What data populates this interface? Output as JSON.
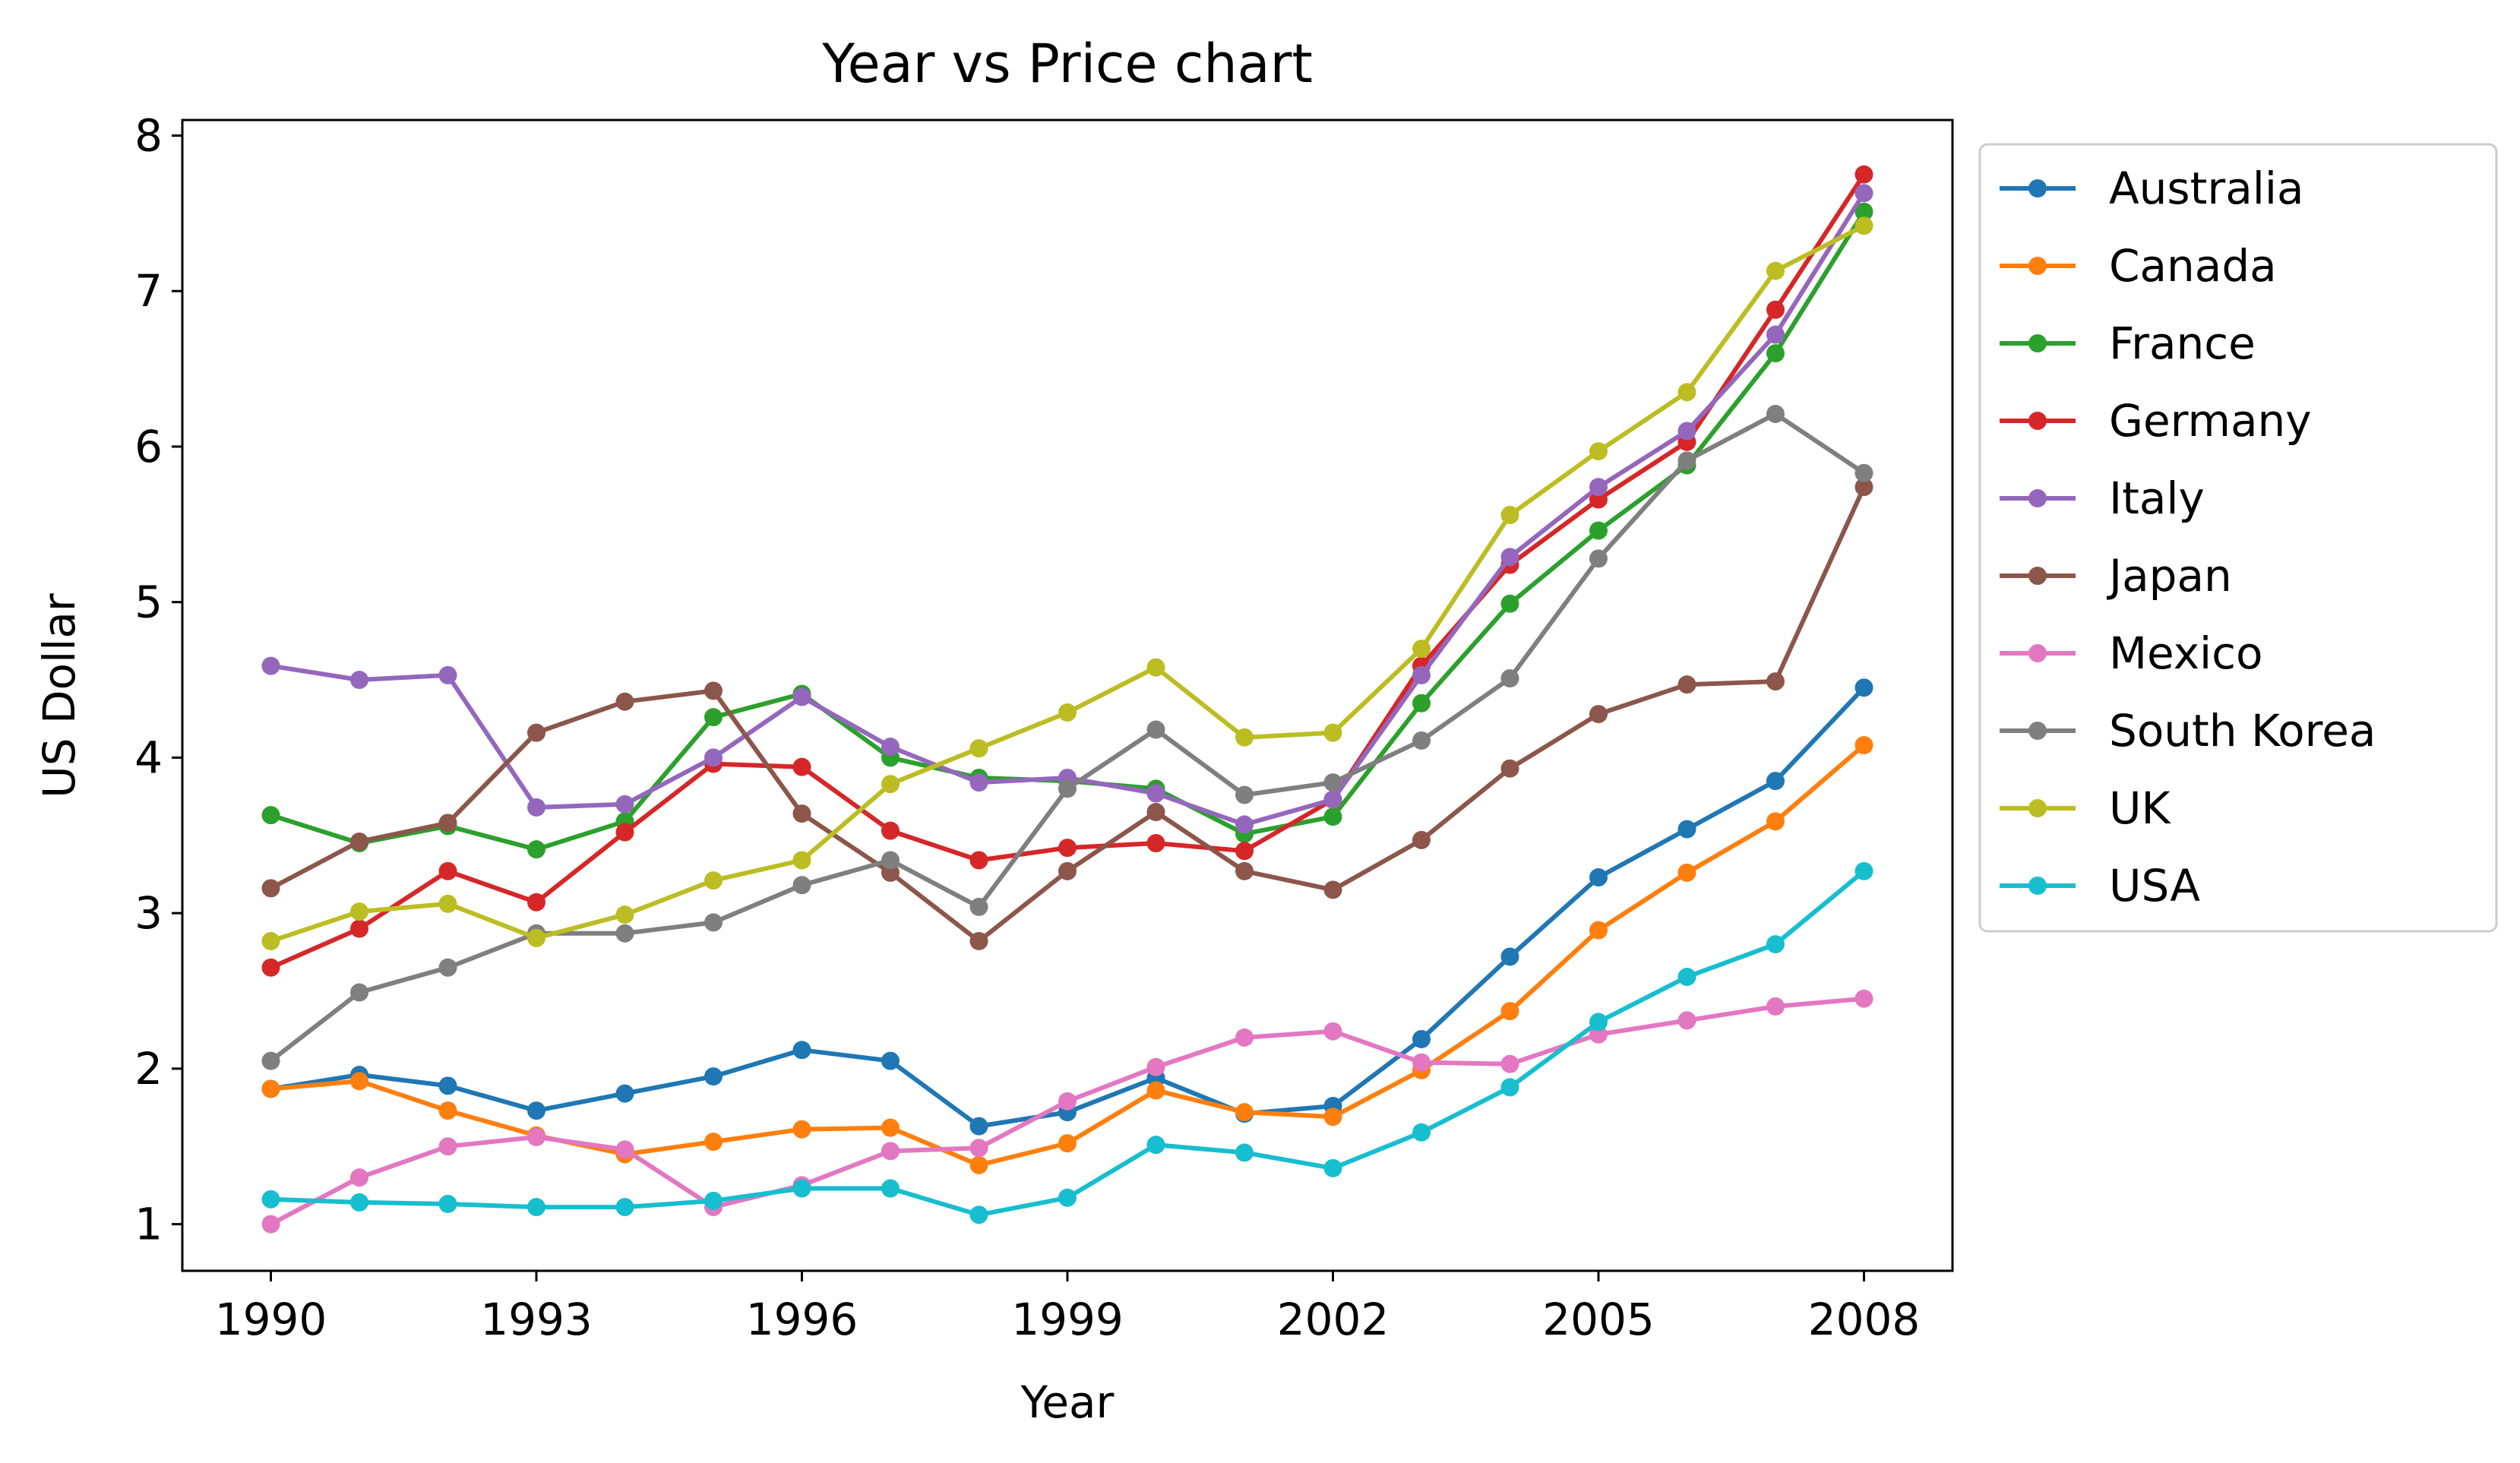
{
  "chart_data": {
    "type": "line",
    "title": "Year vs Price chart",
    "xlabel": "Year",
    "ylabel": "US Dollar",
    "xlim": [
      1989.0,
      2009.0
    ],
    "ylim": [
      0.7,
      8.1
    ],
    "x_ticks": [
      1990,
      1993,
      1996,
      1999,
      2002,
      2005,
      2008
    ],
    "y_ticks": [
      1,
      2,
      3,
      4,
      5,
      6,
      7,
      8
    ],
    "grid": false,
    "legend": "outside-right",
    "x": [
      1990,
      1991,
      1992,
      1993,
      1994,
      1995,
      1996,
      1997,
      1998,
      1999,
      2000,
      2001,
      2002,
      2003,
      2004,
      2005,
      2006,
      2007,
      2008
    ],
    "series": [
      {
        "name": "Australia",
        "color": "#1f77b4",
        "values": [
          1.87,
          1.96,
          1.89,
          1.73,
          1.84,
          1.95,
          2.12,
          2.05,
          1.63,
          1.72,
          1.94,
          1.71,
          1.76,
          2.19,
          2.72,
          3.23,
          3.54,
          3.85,
          4.45
        ]
      },
      {
        "name": "Canada",
        "color": "#ff7f0e",
        "values": [
          1.87,
          1.92,
          1.73,
          1.57,
          1.45,
          1.53,
          1.61,
          1.62,
          1.38,
          1.52,
          1.86,
          1.72,
          1.69,
          1.99,
          2.37,
          2.89,
          3.26,
          3.59,
          4.08
        ]
      },
      {
        "name": "France",
        "color": "#2ca02c",
        "values": [
          3.63,
          3.45,
          3.56,
          3.41,
          3.59,
          4.26,
          4.41,
          4.0,
          3.87,
          3.85,
          3.8,
          3.51,
          3.62,
          4.35,
          4.99,
          5.46,
          5.88,
          6.6,
          7.51
        ]
      },
      {
        "name": "Germany",
        "color": "#d62728",
        "values": [
          2.65,
          2.9,
          3.27,
          3.07,
          3.52,
          3.96,
          3.94,
          3.53,
          3.34,
          3.42,
          3.45,
          3.4,
          3.73,
          4.59,
          5.24,
          5.66,
          6.03,
          6.88,
          7.75
        ]
      },
      {
        "name": "Italy",
        "color": "#9467bd",
        "values": [
          4.59,
          4.5,
          4.53,
          3.68,
          3.7,
          4.0,
          4.39,
          4.07,
          3.84,
          3.87,
          3.77,
          3.57,
          3.73,
          4.53,
          5.29,
          5.74,
          6.1,
          6.72,
          7.63
        ]
      },
      {
        "name": "Japan",
        "color": "#8c564b",
        "values": [
          3.16,
          3.46,
          3.58,
          4.16,
          4.36,
          4.43,
          3.64,
          3.26,
          2.82,
          3.27,
          3.65,
          3.27,
          3.15,
          3.47,
          3.93,
          4.28,
          4.47,
          4.49,
          5.74
        ]
      },
      {
        "name": "Mexico",
        "color": "#e377c2",
        "values": [
          1.0,
          1.3,
          1.5,
          1.56,
          1.48,
          1.11,
          1.25,
          1.47,
          1.49,
          1.79,
          2.01,
          2.2,
          2.24,
          2.04,
          2.03,
          2.22,
          2.31,
          2.4,
          2.45
        ]
      },
      {
        "name": "South Korea",
        "color": "#7f7f7f",
        "values": [
          2.05,
          2.49,
          2.65,
          2.87,
          2.87,
          2.94,
          3.18,
          3.34,
          3.04,
          3.8,
          4.18,
          3.76,
          3.84,
          4.11,
          4.51,
          5.28,
          5.91,
          6.21,
          5.83
        ]
      },
      {
        "name": "UK",
        "color": "#bcbd22",
        "values": [
          2.82,
          3.01,
          3.06,
          2.84,
          2.99,
          3.21,
          3.34,
          3.83,
          4.06,
          4.29,
          4.58,
          4.13,
          4.16,
          4.7,
          5.56,
          5.97,
          6.35,
          7.13,
          7.42
        ]
      },
      {
        "name": "USA",
        "color": "#17becf",
        "values": [
          1.16,
          1.14,
          1.13,
          1.11,
          1.11,
          1.15,
          1.23,
          1.23,
          1.06,
          1.17,
          1.51,
          1.46,
          1.36,
          1.59,
          1.88,
          2.3,
          2.59,
          2.8,
          3.27
        ]
      }
    ]
  }
}
